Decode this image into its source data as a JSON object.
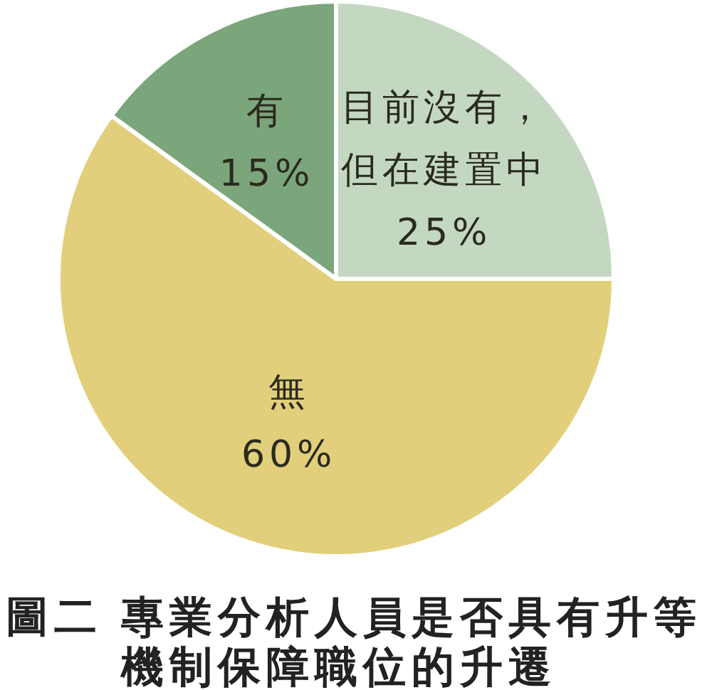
{
  "chart_data": {
    "type": "pie",
    "title": "圖二 專業分析人員是否具有升等機制保障職位的升遷",
    "categories": [
      "目前沒有，但在建置中",
      "無",
      "有"
    ],
    "values": [
      25,
      60,
      15
    ],
    "colors": [
      "#c4d8c1",
      "#e2cf7b",
      "#7ba67b"
    ],
    "value_labels": [
      "25%",
      "60%",
      "15%"
    ]
  }
}
